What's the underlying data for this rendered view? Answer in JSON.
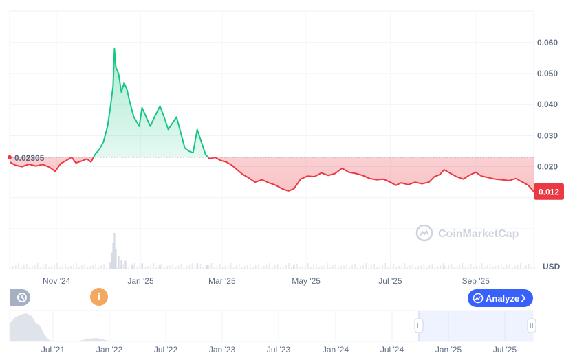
{
  "chart_data": {
    "type": "line",
    "baseline_label": "0.02305",
    "baseline": 0.02305,
    "current_label": "0.012",
    "currency": "USD",
    "ylim": [
      0,
      0.068
    ],
    "y_ticks": [
      {
        "value": 0.06,
        "label": "0.060"
      },
      {
        "value": 0.05,
        "label": "0.050"
      },
      {
        "value": 0.04,
        "label": "0.040"
      },
      {
        "value": 0.03,
        "label": "0.030"
      },
      {
        "value": 0.02,
        "label": "0.020"
      }
    ],
    "x_range": [
      "2024-09-28",
      "2025-10-13"
    ],
    "x_ticks": [
      {
        "date": "2024-11-01",
        "label": "Nov '24"
      },
      {
        "date": "2025-01-01",
        "label": "Jan '25"
      },
      {
        "date": "2025-03-01",
        "label": "Mar '25"
      },
      {
        "date": "2025-05-01",
        "label": "May '25"
      },
      {
        "date": "2025-07-01",
        "label": "Jul '25"
      },
      {
        "date": "2025-09-01",
        "label": "Sep '25"
      }
    ],
    "series": [
      {
        "points": [
          [
            "2024-09-28",
            0.0215
          ],
          [
            "2024-10-02",
            0.0205
          ],
          [
            "2024-10-07",
            0.02
          ],
          [
            "2024-10-12",
            0.0208
          ],
          [
            "2024-10-17",
            0.0202
          ],
          [
            "2024-10-22",
            0.0207
          ],
          [
            "2024-10-27",
            0.0198
          ],
          [
            "2024-10-31",
            0.0185
          ],
          [
            "2024-11-04",
            0.021
          ],
          [
            "2024-11-08",
            0.022
          ],
          [
            "2024-11-12",
            0.023
          ],
          [
            "2024-11-15",
            0.0212
          ],
          [
            "2024-11-19",
            0.0218
          ],
          [
            "2024-11-23",
            0.0225
          ],
          [
            "2024-11-26",
            0.0215
          ],
          [
            "2024-11-29",
            0.024
          ],
          [
            "2024-12-02",
            0.0255
          ],
          [
            "2024-12-05",
            0.028
          ],
          [
            "2024-12-08",
            0.033
          ],
          [
            "2024-12-10",
            0.039
          ],
          [
            "2024-12-12",
            0.046
          ],
          [
            "2024-12-13",
            0.058
          ],
          [
            "2024-12-14",
            0.052
          ],
          [
            "2024-12-16",
            0.05
          ],
          [
            "2024-12-18",
            0.044
          ],
          [
            "2024-12-20",
            0.047
          ],
          [
            "2024-12-22",
            0.045
          ],
          [
            "2024-12-24",
            0.041
          ],
          [
            "2024-12-27",
            0.036
          ],
          [
            "2024-12-31",
            0.033
          ],
          [
            "2025-01-02",
            0.039
          ],
          [
            "2025-01-05",
            0.036
          ],
          [
            "2025-01-08",
            0.033
          ],
          [
            "2025-01-11",
            0.036
          ],
          [
            "2025-01-15",
            0.0395
          ],
          [
            "2025-01-18",
            0.036
          ],
          [
            "2025-01-21",
            0.032
          ],
          [
            "2025-01-24",
            0.034
          ],
          [
            "2025-01-27",
            0.036
          ],
          [
            "2025-01-30",
            0.031
          ],
          [
            "2025-02-02",
            0.026
          ],
          [
            "2025-02-05",
            0.025
          ],
          [
            "2025-02-08",
            0.0245
          ],
          [
            "2025-02-11",
            0.032
          ],
          [
            "2025-02-14",
            0.028
          ],
          [
            "2025-02-17",
            0.024
          ],
          [
            "2025-02-20",
            0.0225
          ],
          [
            "2025-02-24",
            0.023
          ],
          [
            "2025-02-28",
            0.022
          ],
          [
            "2025-03-04",
            0.0215
          ],
          [
            "2025-03-08",
            0.0205
          ],
          [
            "2025-03-12",
            0.019
          ],
          [
            "2025-03-16",
            0.0175
          ],
          [
            "2025-03-20",
            0.0165
          ],
          [
            "2025-03-25",
            0.015
          ],
          [
            "2025-03-30",
            0.0158
          ],
          [
            "2025-04-04",
            0.0148
          ],
          [
            "2025-04-09",
            0.014
          ],
          [
            "2025-04-14",
            0.0128
          ],
          [
            "2025-04-18",
            0.0122
          ],
          [
            "2025-04-22",
            0.0128
          ],
          [
            "2025-04-27",
            0.016
          ],
          [
            "2025-05-02",
            0.017
          ],
          [
            "2025-05-07",
            0.0168
          ],
          [
            "2025-05-12",
            0.018
          ],
          [
            "2025-05-17",
            0.0172
          ],
          [
            "2025-05-22",
            0.0178
          ],
          [
            "2025-05-27",
            0.0195
          ],
          [
            "2025-06-01",
            0.0182
          ],
          [
            "2025-06-06",
            0.0178
          ],
          [
            "2025-06-11",
            0.0172
          ],
          [
            "2025-06-16",
            0.0162
          ],
          [
            "2025-06-21",
            0.0158
          ],
          [
            "2025-06-26",
            0.016
          ],
          [
            "2025-07-01",
            0.015
          ],
          [
            "2025-07-05",
            0.014
          ],
          [
            "2025-07-09",
            0.0148
          ],
          [
            "2025-07-14",
            0.0142
          ],
          [
            "2025-07-19",
            0.015
          ],
          [
            "2025-07-24",
            0.0145
          ],
          [
            "2025-07-29",
            0.015
          ],
          [
            "2025-08-02",
            0.0168
          ],
          [
            "2025-08-06",
            0.0175
          ],
          [
            "2025-08-09",
            0.019
          ],
          [
            "2025-08-13",
            0.018
          ],
          [
            "2025-08-18",
            0.0168
          ],
          [
            "2025-08-23",
            0.016
          ],
          [
            "2025-08-27",
            0.0172
          ],
          [
            "2025-09-01",
            0.0182
          ],
          [
            "2025-09-05",
            0.017
          ],
          [
            "2025-09-10",
            0.0165
          ],
          [
            "2025-09-15",
            0.016
          ],
          [
            "2025-09-20",
            0.0158
          ],
          [
            "2025-09-25",
            0.0155
          ],
          [
            "2025-09-30",
            0.0162
          ],
          [
            "2025-10-05",
            0.015
          ],
          [
            "2025-10-09",
            0.014
          ],
          [
            "2025-10-13",
            0.012
          ]
        ]
      }
    ],
    "volume_spikes": [
      [
        "2024-12-10",
        0.18
      ],
      [
        "2024-12-11",
        0.45
      ],
      [
        "2024-12-12",
        0.72
      ],
      [
        "2024-12-13",
        1.0
      ],
      [
        "2024-12-14",
        0.55
      ],
      [
        "2024-12-16",
        0.35
      ],
      [
        "2024-12-18",
        0.25
      ],
      [
        "2024-12-21",
        0.22
      ],
      [
        "2024-12-26",
        0.12
      ],
      [
        "2025-01-02",
        0.15
      ],
      [
        "2025-01-15",
        0.12
      ],
      [
        "2025-02-11",
        0.15
      ],
      [
        "2025-02-18",
        0.1
      ],
      [
        "2025-04-22",
        0.12
      ],
      [
        "2025-08-09",
        0.08
      ]
    ],
    "navigator": {
      "x_ticks": [
        "Jul '21",
        "Jan '22",
        "Jul '22",
        "Jan '23",
        "Jul '23",
        "Jan '24",
        "Jul '24",
        "Jan '25",
        "Jul '25"
      ]
    }
  },
  "watermark": "CoinMarketCap",
  "analyze_label": "Analyze",
  "info_label": "i",
  "colors": {
    "up": "#16c784",
    "down": "#ea3943",
    "brand": "#3861fb",
    "grid": "#eff2f5",
    "text": "#616e85"
  }
}
